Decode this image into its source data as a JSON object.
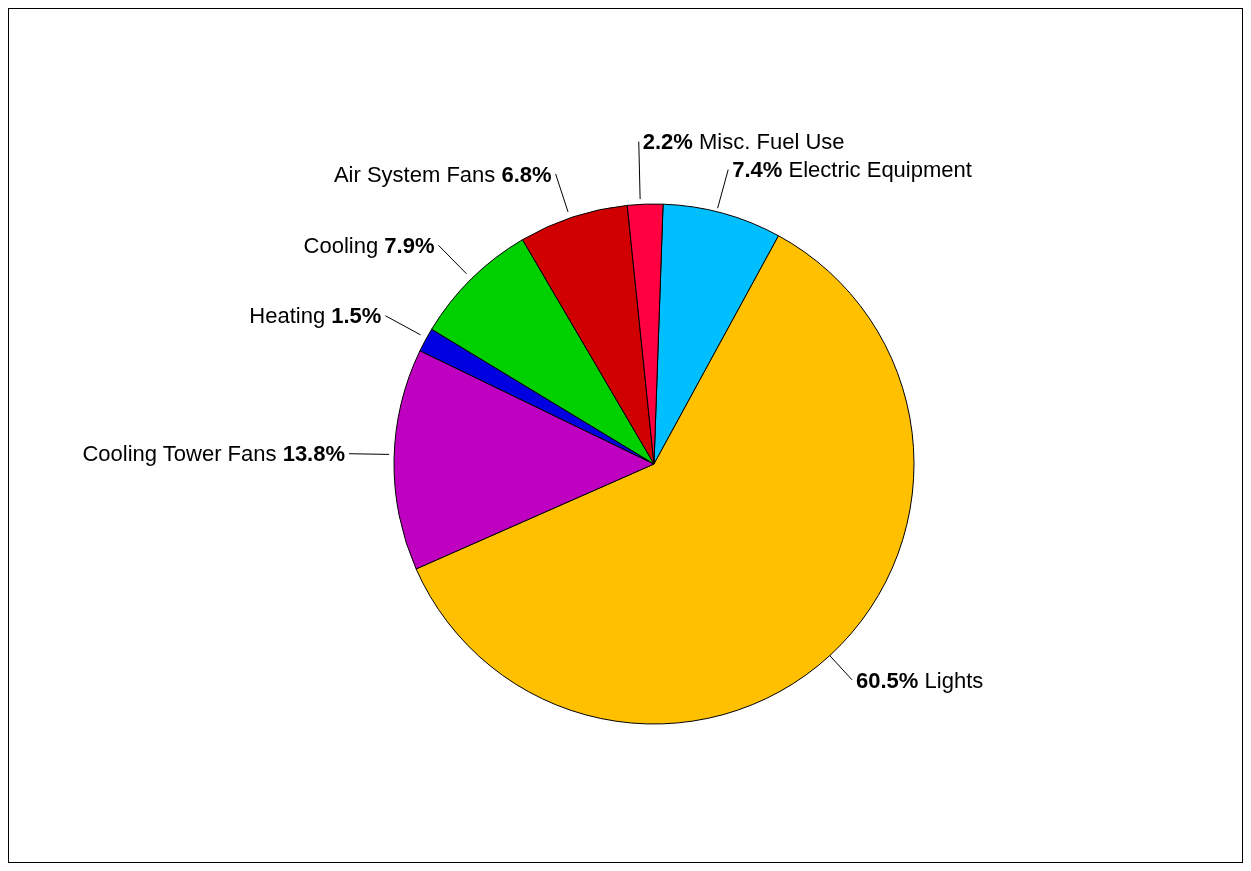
{
  "chart_data": {
    "type": "pie",
    "categories": [
      "Electric Equipment",
      "Lights",
      "Cooling Tower Fans",
      "Heating",
      "Cooling",
      "Air System Fans",
      "Misc. Fuel Use"
    ],
    "values": [
      7.4,
      60.5,
      13.8,
      1.5,
      7.9,
      6.8,
      2.2
    ],
    "value_labels": [
      "7.4%",
      "60.5%",
      "13.8%",
      "1.5%",
      "7.9%",
      "6.8%",
      "2.2%"
    ],
    "colors": [
      "#00bfff",
      "#ffc000",
      "#c000c0",
      "#0000e0",
      "#00d000",
      "#d00000",
      "#ff0040"
    ]
  }
}
